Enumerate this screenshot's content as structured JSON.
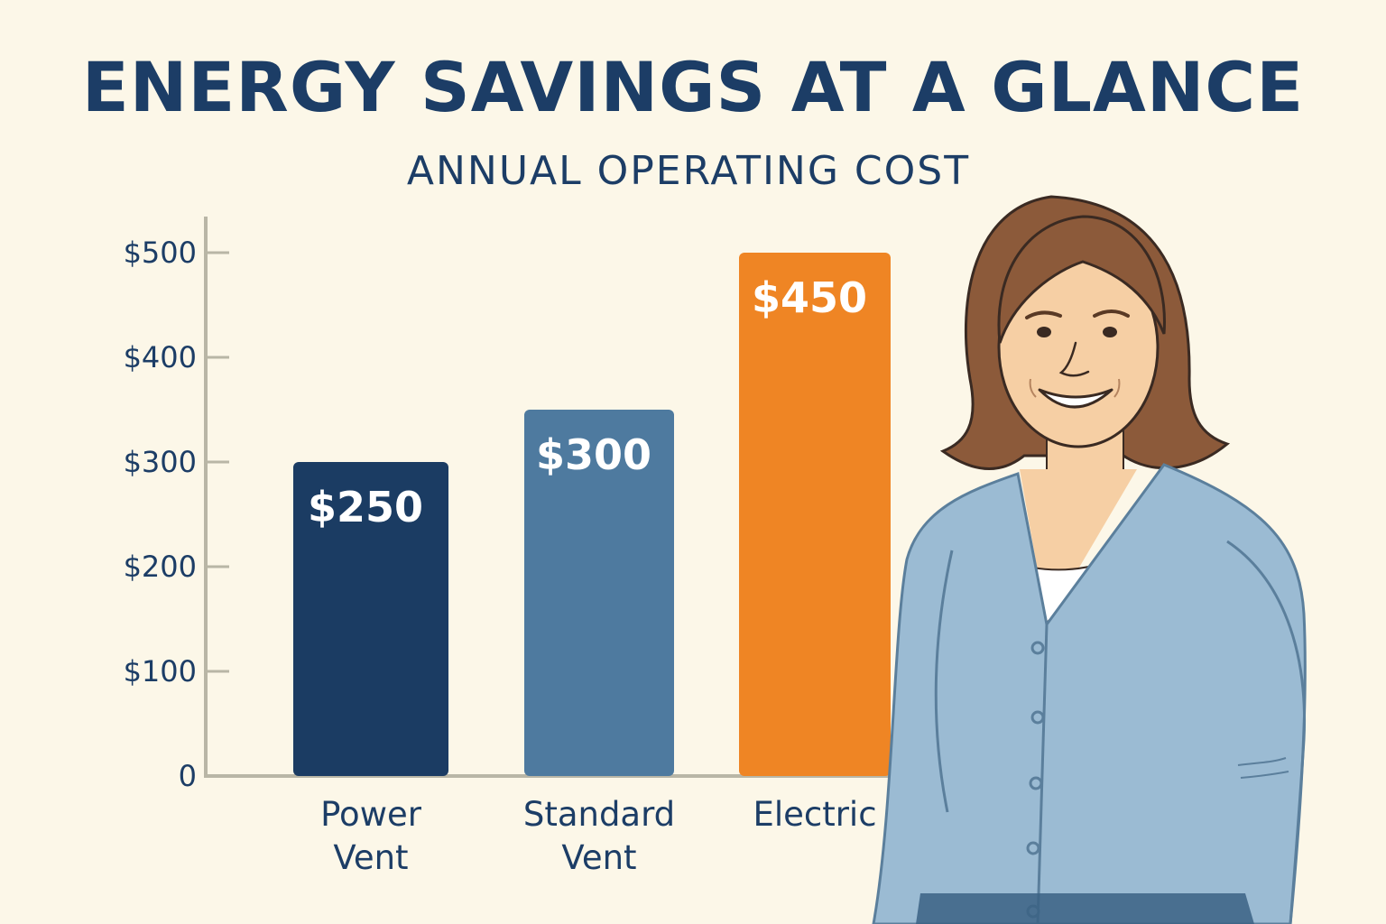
{
  "chart_data": {
    "type": "bar",
    "title": "ENERGY SAVINGS AT A GLANCE",
    "subtitle": "ANNUAL OPERATING COST",
    "categories": [
      [
        "Power",
        "Vent"
      ],
      [
        "Standard",
        "Vent"
      ],
      [
        "Electric"
      ]
    ],
    "values": [
      250,
      300,
      450
    ],
    "data_labels": [
      "$250",
      "$300",
      "$450"
    ],
    "y_ticks": [
      0,
      100,
      200,
      300,
      400,
      500
    ],
    "y_tick_labels": [
      "0",
      "$100",
      "$200",
      "$300",
      "$400",
      "$500"
    ],
    "ylim": [
      0,
      500
    ],
    "grid": false,
    "colors": [
      "#1b3c63",
      "#4e7a9f",
      "#ef8524"
    ]
  },
  "illustration": {
    "subject": "smiling-woman-icon",
    "colors": {
      "hair": "#8c5a3a",
      "skin": "#f6cfa4",
      "cardigan": "#9bbbd3",
      "outline": "#3a2a22"
    }
  }
}
